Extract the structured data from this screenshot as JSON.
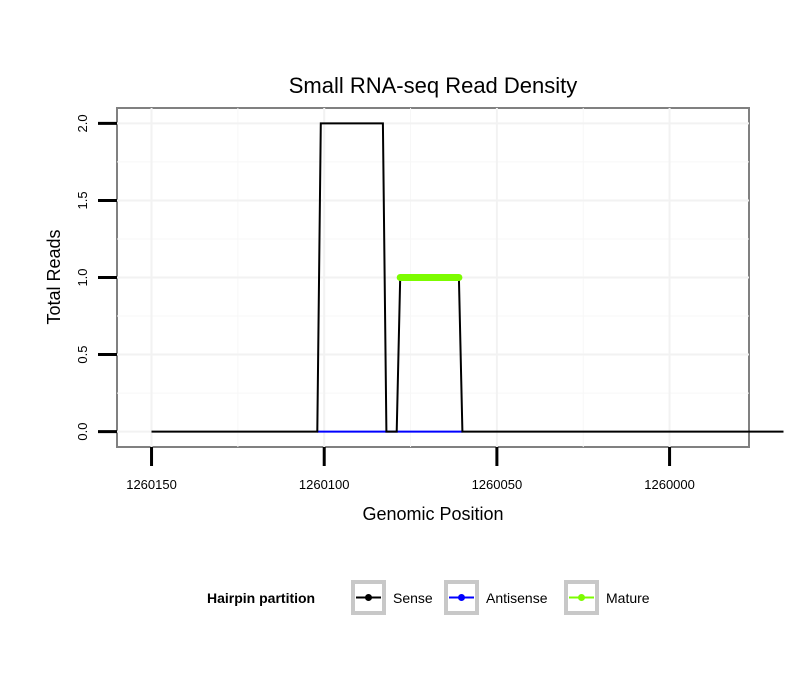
{
  "chart_data": {
    "type": "line",
    "title": "Small RNA-seq Read Density",
    "xlabel": "Genomic Position",
    "ylabel": "Total Reads",
    "x_reversed": true,
    "xlim": [
      1260160,
      1259977
    ],
    "ylim": [
      -0.1,
      2.1
    ],
    "x_ticks": [
      1260150,
      1260100,
      1260050,
      1260000
    ],
    "x_tick_labels": [
      "1260150",
      "1260100",
      "1260050",
      "1260000"
    ],
    "y_ticks": [
      0.0,
      0.5,
      1.0,
      1.5,
      2.0
    ],
    "y_tick_labels": [
      "0.0",
      "0.5",
      "1.0",
      "1.5",
      "2.0"
    ],
    "grid": true,
    "legend_position": "bottom",
    "legend_title": "Hairpin partition",
    "series": [
      {
        "name": "Sense",
        "color": "#000000",
        "points": [
          [
            1260150,
            0
          ],
          [
            1260102,
            0
          ],
          [
            1260101,
            2
          ],
          [
            1260083,
            2
          ],
          [
            1260082,
            0
          ],
          [
            1260079,
            0
          ],
          [
            1260078,
            1
          ],
          [
            1260061,
            1
          ],
          [
            1260060,
            0
          ],
          [
            1259967,
            0
          ]
        ]
      },
      {
        "name": "Antisense",
        "color": "#0000ff",
        "points": [
          [
            1260102,
            0
          ],
          [
            1260060,
            0
          ]
        ]
      },
      {
        "name": "Mature",
        "color": "#7cfc00",
        "points": [
          [
            1260078,
            1
          ],
          [
            1260061,
            1
          ]
        ]
      }
    ]
  }
}
